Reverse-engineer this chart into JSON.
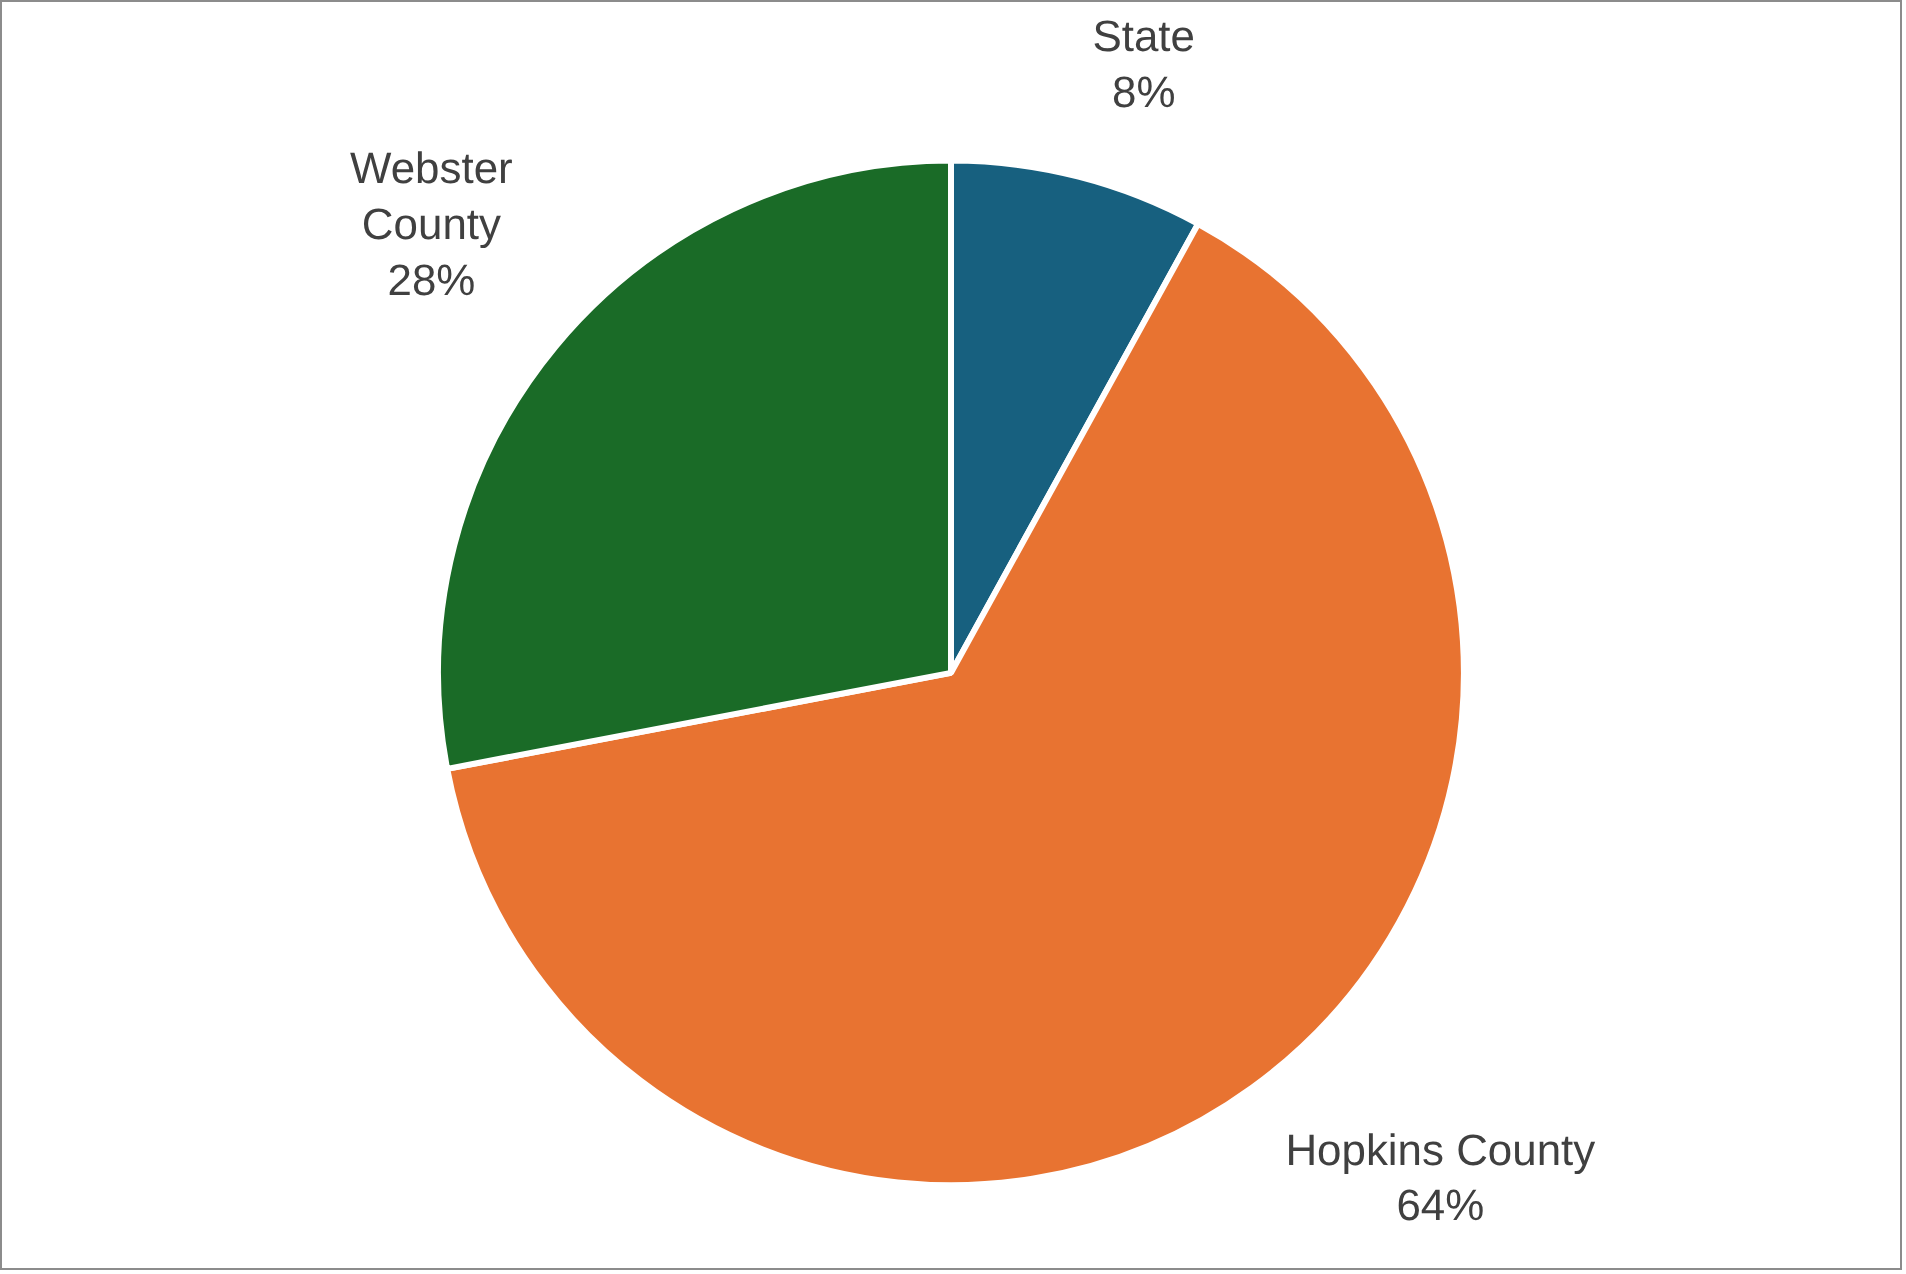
{
  "chart_data": {
    "type": "pie",
    "categories": [
      "State",
      "Hopkins County",
      "Webster County"
    ],
    "values": [
      8,
      64,
      28
    ],
    "colors": [
      "#17607f",
      "#e87331",
      "#1a6b27"
    ],
    "value_labels": [
      "8%",
      "64%",
      "28%"
    ]
  }
}
